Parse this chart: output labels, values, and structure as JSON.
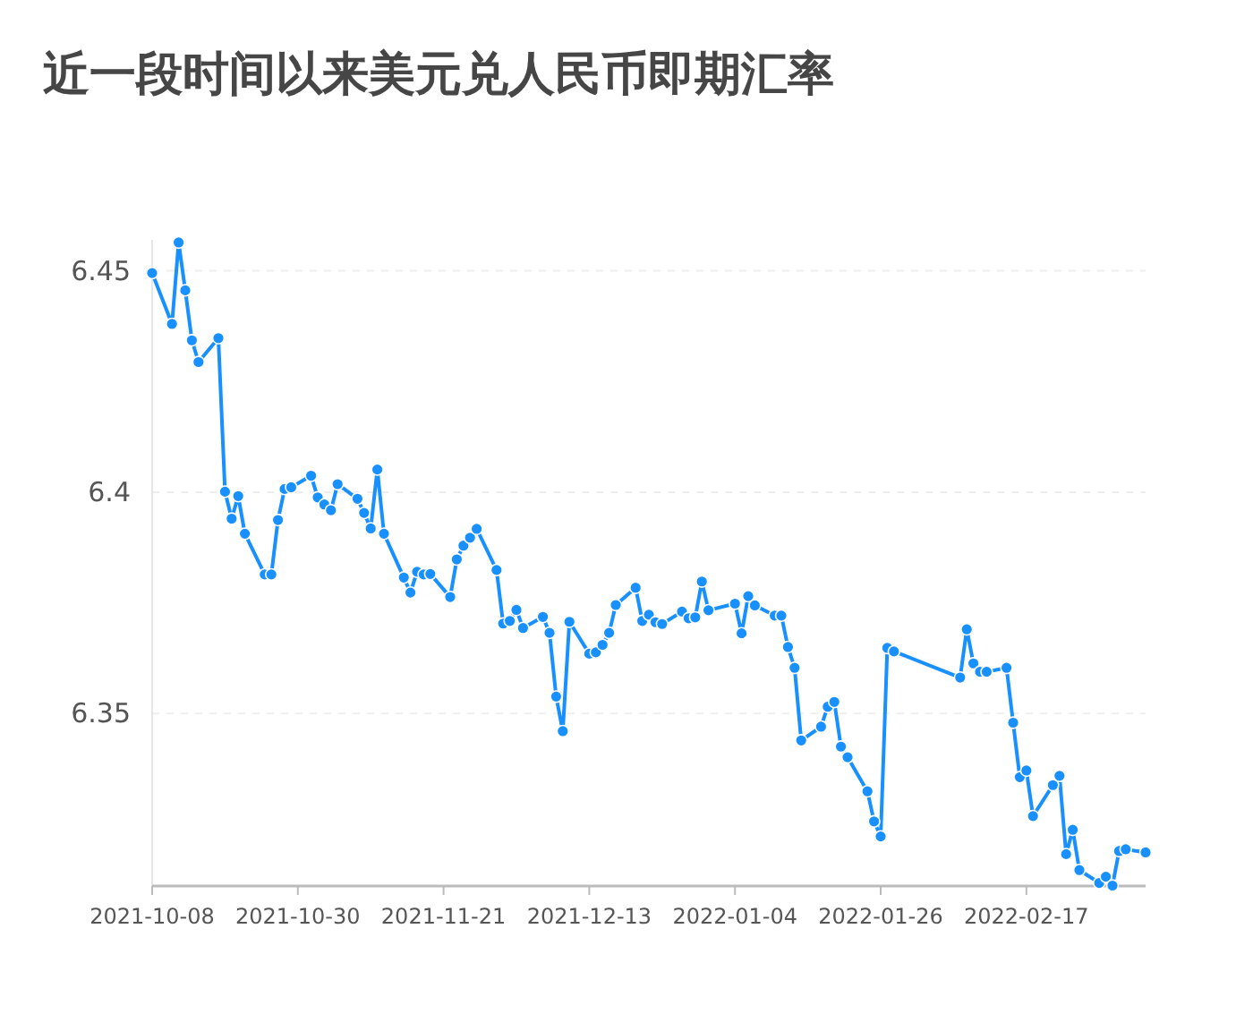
{
  "chart_data": {
    "type": "line",
    "title": "近一段时间以来美元兑人民币即期汇率",
    "x": [
      "2021-10-08",
      "2021-10-11",
      "2021-10-12",
      "2021-10-13",
      "2021-10-14",
      "2021-10-15",
      "2021-10-18",
      "2021-10-19",
      "2021-10-20",
      "2021-10-21",
      "2021-10-22",
      "2021-10-25",
      "2021-10-26",
      "2021-10-27",
      "2021-10-28",
      "2021-10-29",
      "2021-11-01",
      "2021-11-02",
      "2021-11-03",
      "2021-11-04",
      "2021-11-05",
      "2021-11-08",
      "2021-11-09",
      "2021-11-10",
      "2021-11-11",
      "2021-11-12",
      "2021-11-15",
      "2021-11-16",
      "2021-11-17",
      "2021-11-18",
      "2021-11-19",
      "2021-11-22",
      "2021-11-23",
      "2021-11-24",
      "2021-11-25",
      "2021-11-26",
      "2021-11-29",
      "2021-11-30",
      "2021-12-01",
      "2021-12-02",
      "2021-12-03",
      "2021-12-06",
      "2021-12-07",
      "2021-12-08",
      "2021-12-09",
      "2021-12-10",
      "2021-12-13",
      "2021-12-14",
      "2021-12-15",
      "2021-12-16",
      "2021-12-17",
      "2021-12-20",
      "2021-12-21",
      "2021-12-22",
      "2021-12-23",
      "2021-12-24",
      "2021-12-27",
      "2021-12-28",
      "2021-12-29",
      "2021-12-30",
      "2021-12-31",
      "2022-01-04",
      "2022-01-05",
      "2022-01-06",
      "2022-01-07",
      "2022-01-10",
      "2022-01-11",
      "2022-01-12",
      "2022-01-13",
      "2022-01-14",
      "2022-01-17",
      "2022-01-18",
      "2022-01-19",
      "2022-01-20",
      "2022-01-21",
      "2022-01-24",
      "2022-01-25",
      "2022-01-26",
      "2022-01-27",
      "2022-01-28",
      "2022-02-07",
      "2022-02-08",
      "2022-02-09",
      "2022-02-10",
      "2022-02-11",
      "2022-02-14",
      "2022-02-15",
      "2022-02-16",
      "2022-02-17",
      "2022-02-18",
      "2022-02-21",
      "2022-02-22",
      "2022-02-23",
      "2022-02-24",
      "2022-02-25",
      "2022-02-28",
      "2022-03-01",
      "2022-03-02",
      "2022-03-03",
      "2022-03-04",
      "2022-03-07"
    ],
    "values": [
      6.4495,
      6.438,
      6.4564,
      6.4456,
      6.4343,
      6.4294,
      6.4348,
      6.4001,
      6.394,
      6.3991,
      6.3906,
      6.3814,
      6.3814,
      6.3937,
      6.4007,
      6.4011,
      6.4037,
      6.3988,
      6.3972,
      6.3959,
      6.4018,
      6.3985,
      6.3953,
      6.3918,
      6.4051,
      6.3906,
      6.3807,
      6.3773,
      6.382,
      6.3814,
      6.3815,
      6.3763,
      6.3848,
      6.3879,
      6.3897,
      6.3917,
      6.3824,
      6.3703,
      6.3709,
      6.3734,
      6.3693,
      6.3718,
      6.3682,
      6.3538,
      6.346,
      6.3707,
      6.3635,
      6.3638,
      6.3655,
      6.3682,
      6.3745,
      6.3784,
      6.3709,
      6.3723,
      6.3706,
      6.3702,
      6.373,
      6.3715,
      6.3717,
      6.3798,
      6.3733,
      6.3748,
      6.3681,
      6.3765,
      6.3744,
      6.3721,
      6.3721,
      6.365,
      6.3603,
      6.3439,
      6.347,
      6.3515,
      6.3526,
      6.3425,
      6.3401,
      6.3324,
      6.3256,
      6.3222,
      6.3648,
      6.364,
      6.3581,
      6.369,
      6.3613,
      6.3594,
      6.3594,
      6.3603,
      6.3479,
      6.3356,
      6.3371,
      6.3268,
      6.3338,
      6.3359,
      6.3182,
      6.3237,
      6.3146,
      6.3117,
      6.3131,
      6.3111,
      6.3189,
      6.3193,
      6.3186
    ],
    "color": "#1890ff",
    "xlim": [
      "2021-10-08",
      "2022-03-07"
    ],
    "xticks": [
      "2021-10-08",
      "2021-10-30",
      "2021-11-21",
      "2021-12-13",
      "2022-01-04",
      "2022-01-26",
      "2022-02-17"
    ],
    "ylim": [
      6.311,
      6.457
    ],
    "yticks": [
      6.35,
      6.4,
      6.45
    ],
    "grid": "y",
    "marker": "circle",
    "line_style": "solid"
  }
}
